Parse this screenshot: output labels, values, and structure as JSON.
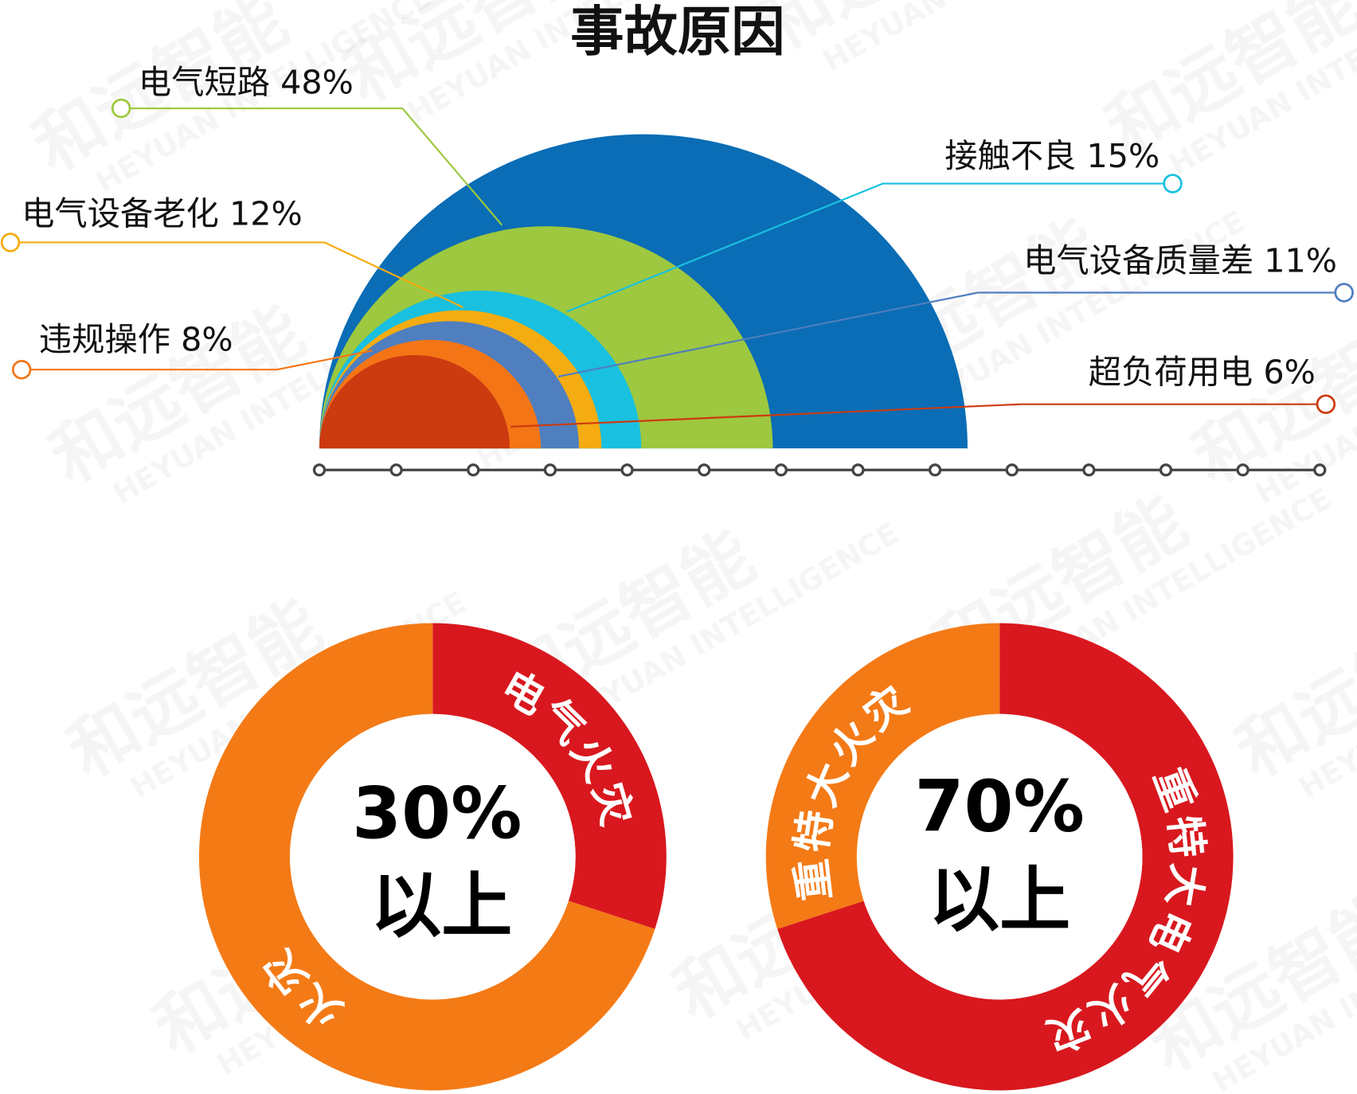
{
  "watermark": {
    "cn": "和远智能",
    "en": "HEYUAN INTELLIGENCE"
  },
  "chart_data": [
    {
      "type": "semicircle-area",
      "title": "事故原因",
      "background_color": "#0a6db5",
      "series": [
        {
          "label": "电气短路 48%",
          "name": "电气短路",
          "value": 48,
          "color": "#9dc83f"
        },
        {
          "label": "接触不良 15%",
          "name": "接触不良",
          "value": 15,
          "color": "#19c0e0"
        },
        {
          "label": "电气设备老化 12%",
          "name": "电气设备老化",
          "value": 12,
          "color": "#f4ac10"
        },
        {
          "label": "电气设备质量差 11%",
          "name": "电气设备质量差",
          "value": 11,
          "color": "#4f7fbf"
        },
        {
          "label": "违规操作 8%",
          "name": "违规操作",
          "value": 8,
          "color": "#f47516"
        },
        {
          "label": "超负荷用电 6%",
          "name": "超负荷用电",
          "value": 6,
          "color": "#cc3a10"
        }
      ],
      "axis_ticks": 14
    },
    {
      "type": "pie",
      "donut": true,
      "center_value": "30%",
      "center_text": "以上",
      "slices": [
        {
          "label": "电气火灾",
          "value": 30,
          "color": "#d8181e"
        },
        {
          "label": "火灾",
          "value": 70,
          "color": "#f47a16"
        }
      ]
    },
    {
      "type": "pie",
      "donut": true,
      "center_value": "70%",
      "center_text": "以上",
      "slices": [
        {
          "label": "重特大电气火灾",
          "value": 70,
          "color": "#d8181e"
        },
        {
          "label": "重特大火灾",
          "value": 30,
          "color": "#f47a16"
        }
      ]
    }
  ]
}
